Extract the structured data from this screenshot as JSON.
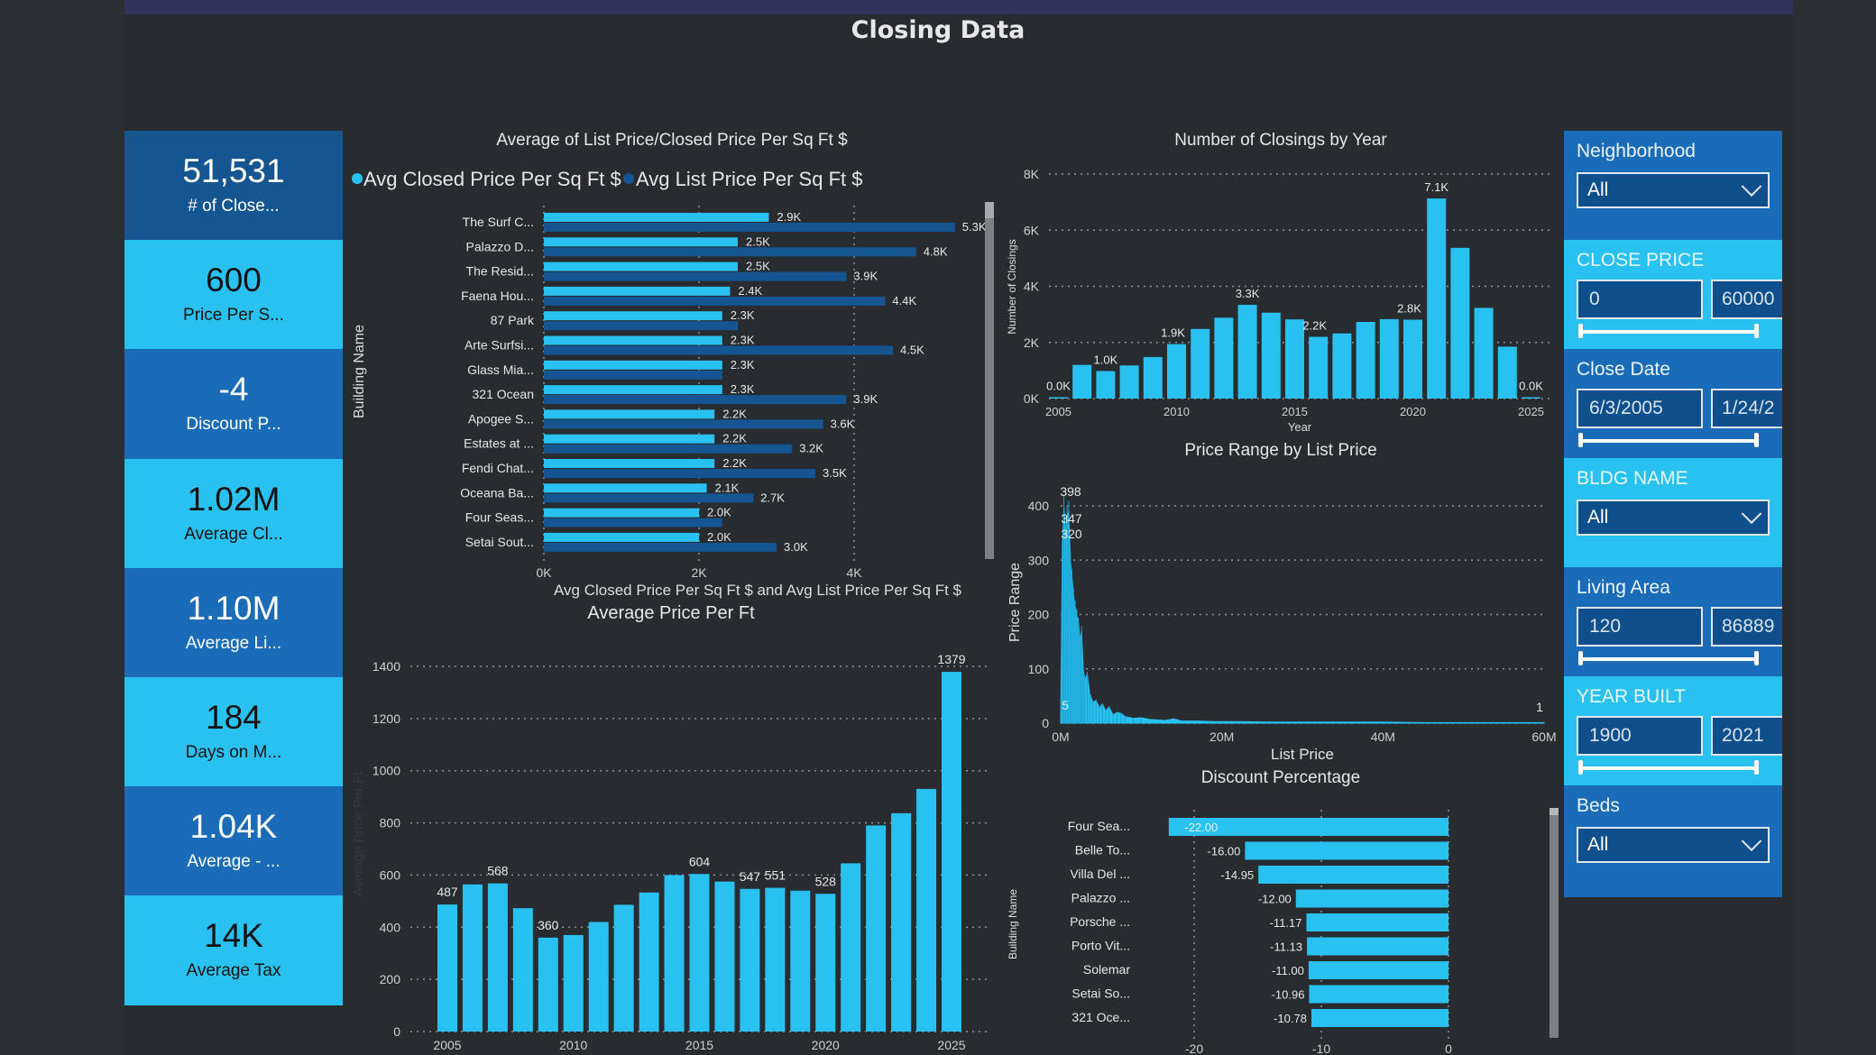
{
  "page": {
    "title": "Closing Data"
  },
  "kpis": [
    {
      "value": "51,531",
      "label": "# of Close...",
      "style": "darkest"
    },
    {
      "value": "600",
      "label": "Price Per S...",
      "style": "light"
    },
    {
      "value": "-4",
      "label": "Discount P...",
      "style": "dark"
    },
    {
      "value": "1.02M",
      "label": "Average Cl...",
      "style": "light"
    },
    {
      "value": "1.10M",
      "label": "Average Li...",
      "style": "dark"
    },
    {
      "value": "184",
      "label": "Days on M...",
      "style": "light"
    },
    {
      "value": "1.04K",
      "label": "Average - ...",
      "style": "dark"
    },
    {
      "value": "14K",
      "label": "Average Tax",
      "style": "light"
    }
  ],
  "slicers": {
    "neighborhood": {
      "title": "Neighborhood",
      "value": "All"
    },
    "close_price": {
      "title": "CLOSE PRICE",
      "min": "0",
      "max": "60000"
    },
    "close_date": {
      "title": "Close Date",
      "min": "6/3/2005",
      "max": "1/24/2"
    },
    "bldg_name": {
      "title": "BLDG NAME",
      "value": "All"
    },
    "living_area": {
      "title": "Living Area",
      "min": "120",
      "max": "86889"
    },
    "year_built": {
      "title": "YEAR BUILT",
      "min": "1900",
      "max": "2021"
    },
    "beds": {
      "title": "Beds",
      "value": "All"
    }
  },
  "colors": {
    "light_blue": "#29c2f0",
    "dark_blue": "#145592",
    "mid_blue": "#1a6bb8",
    "background": "#282c30",
    "banner": "#31345a"
  },
  "chart_data": [
    {
      "id": "price_per_sqft_by_building",
      "type": "bar",
      "orientation": "horizontal",
      "title": "Average of List Price/Closed Price Per Sq Ft $",
      "xlabel": "Avg Closed Price Per Sq Ft $ and Avg List Price Per Sq Ft $",
      "ylabel": "Building Name",
      "legend_position": "top-left",
      "xlim": [
        0,
        5300
      ],
      "xticks": [
        "0K",
        "2K",
        "4K"
      ],
      "xtick_values": [
        0,
        2000,
        4000
      ],
      "grid": true,
      "categories": [
        "The Surf C...",
        "Palazzo D...",
        "The Resid...",
        "Faena Hou...",
        "87 Park",
        "Arte Surfsi...",
        "Glass Mia...",
        "321 Ocean",
        "Apogee S...",
        "Estates at ...",
        "Fendi Chat...",
        "Oceana Ba...",
        "Four Seas...",
        "Setai Sout..."
      ],
      "series": [
        {
          "name": "Avg Closed Price Per Sq Ft $",
          "color": "#29c2f0",
          "values": [
            2900,
            2500,
            2500,
            2400,
            2300,
            2300,
            2300,
            2300,
            2200,
            2200,
            2200,
            2100,
            2000,
            2000
          ],
          "labels": [
            "2.9K",
            "2.5K",
            "2.5K",
            "2.4K",
            "2.3K",
            "2.3K",
            "2.3K",
            "2.3K",
            "2.2K",
            "2.2K",
            "2.2K",
            "2.1K",
            "2.0K",
            "2.0K"
          ]
        },
        {
          "name": "Avg List Price Per Sq Ft $",
          "color": "#145592",
          "values": [
            5300,
            4800,
            3900,
            4400,
            2500,
            4500,
            2300,
            3900,
            3600,
            3200,
            3500,
            2700,
            2300,
            3000
          ],
          "labels": [
            "5.3K",
            "4.8K",
            "3.9K",
            "4.4K",
            "",
            "4.5K",
            "",
            "3.9K",
            "3.6K",
            "3.2K",
            "3.5K",
            "2.7K",
            "",
            "3.0K"
          ]
        }
      ]
    },
    {
      "id": "avg_price_per_ft",
      "type": "bar",
      "title": "Average Price Per Ft",
      "xlabel": "",
      "ylabel": "Average Price Per Ft",
      "ylim": [
        0,
        1400
      ],
      "yticks": [
        0,
        200,
        400,
        600,
        800,
        1000,
        1200,
        1400
      ],
      "xticks": [
        "2005",
        "2010",
        "2015",
        "2020",
        "2025"
      ],
      "grid": true,
      "categories": [
        "2005",
        "2006",
        "2007",
        "2008",
        "2009",
        "2010",
        "2011",
        "2012",
        "2013",
        "2014",
        "2015",
        "2016",
        "2017",
        "2018",
        "2019",
        "2020",
        "2021",
        "2022",
        "2023",
        "2024",
        "2025"
      ],
      "values": [
        487,
        564,
        568,
        473,
        360,
        370,
        420,
        486,
        533,
        600,
        604,
        575,
        547,
        551,
        540,
        528,
        645,
        790,
        837,
        930,
        1379
      ],
      "labels": [
        "487",
        "",
        "568",
        "",
        "360",
        "",
        "",
        "",
        "",
        "",
        "604",
        "",
        "547",
        "551",
        "",
        "528",
        "",
        "",
        "",
        "",
        "1379"
      ]
    },
    {
      "id": "closings_by_year",
      "type": "bar",
      "title": "Number of Closings by Year",
      "xlabel": "Year",
      "ylabel": "Number of Closings",
      "ylim": [
        0,
        8000
      ],
      "yticks": [
        "0K",
        "2K",
        "4K",
        "6K",
        "8K"
      ],
      "ytick_values": [
        0,
        2000,
        4000,
        6000,
        8000
      ],
      "xticks": [
        "2005",
        "2010",
        "2015",
        "2020",
        "2025"
      ],
      "grid": true,
      "categories": [
        "2005",
        "2006",
        "2007",
        "2008",
        "2009",
        "2010",
        "2011",
        "2012",
        "2013",
        "2014",
        "2015",
        "2016",
        "2017",
        "2018",
        "2019",
        "2020",
        "2021",
        "2022",
        "2023",
        "2024",
        "2025"
      ],
      "values": [
        40,
        1200,
        980,
        1180,
        1480,
        1940,
        2480,
        2880,
        3340,
        3060,
        2820,
        2200,
        2320,
        2730,
        2830,
        2810,
        7130,
        5370,
        3230,
        1850,
        40
      ],
      "labels": [
        "0.0K",
        "",
        "1.0K",
        "",
        "",
        "1.9K",
        "",
        "",
        "3.3K",
        "",
        "",
        "2.2K",
        "",
        "",
        "",
        "2.8K",
        "7.1K",
        "",
        "",
        "",
        "0.0K"
      ]
    },
    {
      "id": "price_range_by_list_price",
      "type": "area",
      "title": "Price Range by List Price",
      "xlabel": "List Price",
      "ylabel": "Price Range",
      "xlim": [
        0,
        60
      ],
      "x_unit": "M",
      "xticks": [
        "0M",
        "20M",
        "40M",
        "60M"
      ],
      "xtick_values": [
        0,
        20,
        40,
        60
      ],
      "ylim": [
        0,
        400
      ],
      "yticks": [
        0,
        100,
        200,
        300,
        400
      ],
      "grid": true,
      "x": [
        0,
        0.2,
        0.4,
        0.6,
        0.8,
        1.0,
        1.2,
        1.4,
        1.6,
        1.8,
        2.0,
        2.2,
        2.4,
        2.6,
        2.8,
        3.0,
        3.3,
        3.6,
        4.0,
        4.4,
        4.8,
        5.2,
        5.6,
        6.0,
        6.5,
        7.0,
        7.5,
        8.0,
        9.0,
        10,
        11,
        12,
        13,
        14,
        15,
        17,
        19,
        22,
        26,
        30,
        35,
        40,
        45,
        50,
        55,
        60
      ],
      "y": [
        5,
        320,
        398,
        347,
        380,
        390,
        300,
        270,
        235,
        215,
        200,
        185,
        150,
        170,
        100,
        80,
        90,
        55,
        38,
        42,
        28,
        35,
        22,
        30,
        15,
        20,
        18,
        12,
        9,
        10,
        7,
        6,
        5,
        8,
        4,
        4,
        3,
        3,
        2,
        2,
        2,
        2,
        1,
        1,
        1,
        1
      ],
      "annotations": [
        "398",
        "347",
        "320",
        "5",
        "1"
      ]
    },
    {
      "id": "discount_percentage",
      "type": "bar",
      "orientation": "horizontal",
      "title": "Discount Percentage",
      "xlabel": "",
      "ylabel": "Building Name",
      "xlim": [
        -22,
        0
      ],
      "xticks": [
        -20,
        -10,
        0
      ],
      "grid": true,
      "categories": [
        "Four Sea...",
        "Belle To...",
        "Villa Del ...",
        "Palazzo ...",
        "Porsche ...",
        "Porto Vit...",
        "Solemar",
        "Setai So...",
        "321 Oce..."
      ],
      "values": [
        -22.0,
        -16.0,
        -14.95,
        -12.0,
        -11.17,
        -11.13,
        -11.0,
        -10.96,
        -10.78
      ],
      "labels": [
        "-22.00",
        "-16.00",
        "-14.95",
        "-12.00",
        "-11.17",
        "-11.13",
        "-11.00",
        "-10.96",
        "-10.78"
      ]
    }
  ]
}
